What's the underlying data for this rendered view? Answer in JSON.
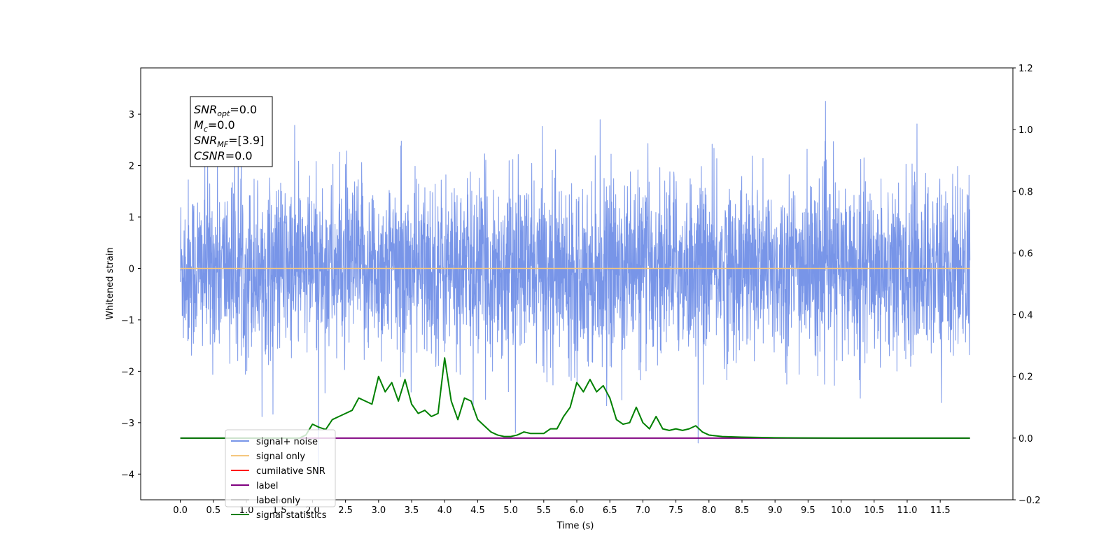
{
  "chart_data": {
    "type": "line",
    "xlabel": "Time (s)",
    "ylabel": "Whitened strain",
    "xlim": [
      -0.6,
      12.6
    ],
    "ylim": [
      -4.5,
      3.9
    ],
    "ylim_right": [
      -0.2,
      1.2
    ],
    "x_ticks": [
      "0.0",
      "0.5",
      "1.0",
      "1.5",
      "2.0",
      "2.5",
      "3.0",
      "3.5",
      "4.0",
      "4.5",
      "5.0",
      "5.5",
      "6.0",
      "6.5",
      "7.0",
      "7.5",
      "8.0",
      "8.5",
      "9.0",
      "9.5",
      "10.0",
      "10.5",
      "11.0",
      "11.5"
    ],
    "y_ticks_left": [
      "3",
      "2",
      "1",
      "0",
      "−1",
      "−2",
      "−3",
      "−4"
    ],
    "y_ticks_right": [
      "1.2",
      "1.0",
      "0.8",
      "0.6",
      "0.4",
      "0.2",
      "0.0",
      "−0.2"
    ],
    "y_tick_values_left": [
      3,
      2,
      1,
      0,
      -1,
      -2,
      -3,
      -4
    ],
    "y_tick_values_right": [
      1.2,
      1.0,
      0.8,
      0.6,
      0.4,
      0.2,
      0.0,
      -0.2
    ],
    "annotation_lines": [
      {
        "sym": "SNR",
        "sub": "opt",
        "rest": "=0.0"
      },
      {
        "sym": "M",
        "sub": "c",
        "rest": "=0.0"
      },
      {
        "sym": "SNR",
        "sub": "MF",
        "rest": "=[3.9]"
      },
      {
        "sym": "CSNR",
        "sub": "",
        "rest": "=0.0"
      }
    ],
    "series": [
      {
        "name": "signal+ noise",
        "color": "#7895e8",
        "axis": "left",
        "description": "noise",
        "t_start": 0.0,
        "t_end": 11.95,
        "envelope": [
          -1.7,
          1.7
        ]
      },
      {
        "name": "signal only",
        "color": "#f5c77e",
        "axis": "left",
        "constant": 0.0
      },
      {
        "name": "cumilative SNR",
        "color": "#ff0000",
        "axis": "right",
        "constant": 0.0
      },
      {
        "name": "label",
        "color": "#800080",
        "axis": "right",
        "constant": 0.0
      },
      {
        "name": "label only",
        "color": "#c8c8c8",
        "axis": "right",
        "constant": 0.0
      },
      {
        "name": "signal statistics",
        "color": "#008000",
        "axis": "right",
        "x": [
          0.0,
          1.0,
          1.8,
          1.9,
          2.0,
          2.1,
          2.2,
          2.3,
          2.4,
          2.5,
          2.6,
          2.7,
          2.8,
          2.9,
          3.0,
          3.1,
          3.2,
          3.3,
          3.4,
          3.5,
          3.6,
          3.7,
          3.8,
          3.9,
          4.0,
          4.1,
          4.2,
          4.3,
          4.4,
          4.5,
          4.6,
          4.7,
          4.8,
          4.9,
          5.0,
          5.1,
          5.2,
          5.3,
          5.4,
          5.5,
          5.6,
          5.7,
          5.8,
          5.9,
          6.0,
          6.1,
          6.2,
          6.3,
          6.4,
          6.5,
          6.6,
          6.7,
          6.8,
          6.9,
          7.0,
          7.1,
          7.2,
          7.3,
          7.4,
          7.5,
          7.6,
          7.7,
          7.8,
          7.9,
          8.0,
          8.2,
          8.5,
          8.8,
          9.0,
          10.0,
          11.0,
          11.95
        ],
        "y": [
          0.0,
          0.0,
          0.0,
          0.01,
          0.045,
          0.035,
          0.028,
          0.06,
          0.07,
          0.08,
          0.09,
          0.13,
          0.12,
          0.11,
          0.2,
          0.15,
          0.18,
          0.12,
          0.19,
          0.11,
          0.08,
          0.09,
          0.07,
          0.08,
          0.26,
          0.12,
          0.06,
          0.13,
          0.12,
          0.06,
          0.04,
          0.02,
          0.01,
          0.005,
          0.005,
          0.01,
          0.02,
          0.015,
          0.015,
          0.015,
          0.03,
          0.03,
          0.07,
          0.1,
          0.18,
          0.15,
          0.19,
          0.15,
          0.17,
          0.13,
          0.06,
          0.045,
          0.05,
          0.1,
          0.05,
          0.03,
          0.07,
          0.03,
          0.025,
          0.03,
          0.025,
          0.03,
          0.04,
          0.02,
          0.01,
          0.005,
          0.003,
          0.002,
          0.001,
          0.0,
          0.0,
          0.0
        ]
      }
    ]
  }
}
